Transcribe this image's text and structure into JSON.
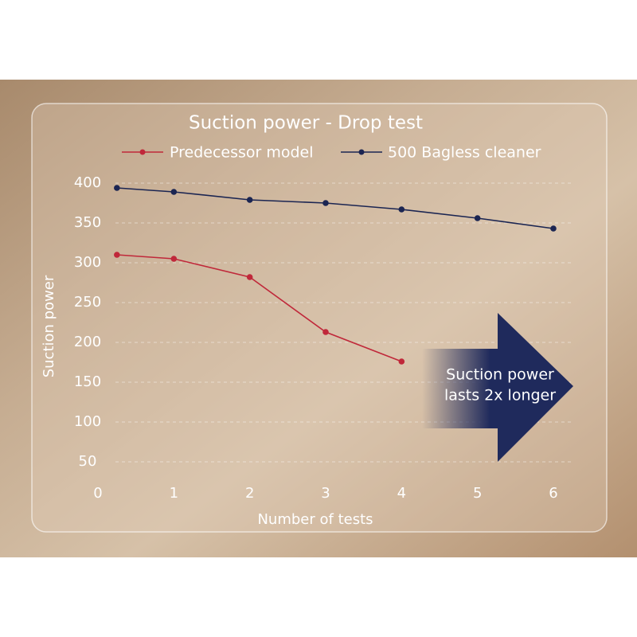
{
  "chart_data": {
    "type": "line",
    "title": "Suction power - Drop test",
    "x_label": "Number of tests",
    "y_label": "Suction power",
    "x": [
      0.25,
      1,
      2,
      3,
      4,
      5,
      6
    ],
    "series": [
      {
        "name": "Predecessor model",
        "color": "#c0283a",
        "values": [
          310,
          305,
          282,
          213,
          176,
          null,
          null
        ]
      },
      {
        "name": "500 Bagless cleaner",
        "color": "#1b2552",
        "values": [
          394,
          389,
          379,
          375,
          367,
          356,
          343
        ]
      }
    ],
    "xlim": [
      0,
      6
    ],
    "xticks": [
      0,
      1,
      2,
      3,
      4,
      5,
      6
    ],
    "ylim": [
      0,
      400
    ],
    "yticks": [
      50,
      100,
      150,
      200,
      250,
      300,
      350,
      400
    ],
    "grid": true,
    "annotation": [
      "Suction power",
      "lasts 2x longer"
    ],
    "annotation_color": "#1f2a5c"
  }
}
